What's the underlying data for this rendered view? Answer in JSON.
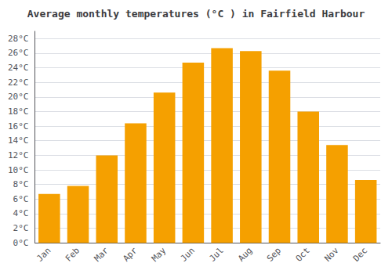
{
  "chart_data": {
    "type": "bar",
    "title": "Average monthly temperatures (°C ) in Fairfield Harbour",
    "categories": [
      "Jan",
      "Feb",
      "Mar",
      "Apr",
      "May",
      "Jun",
      "Jul",
      "Aug",
      "Sep",
      "Oct",
      "Nov",
      "Dec"
    ],
    "values": [
      6.7,
      7.8,
      12.0,
      16.4,
      20.6,
      24.7,
      26.7,
      26.3,
      23.6,
      18.0,
      13.4,
      8.6
    ],
    "color": "#F5A000",
    "ylim": [
      0,
      29
    ],
    "yticks": [
      {
        "value": 0,
        "label": "0°C"
      },
      {
        "value": 2,
        "label": "2°C"
      },
      {
        "value": 4,
        "label": "4°C"
      },
      {
        "value": 6,
        "label": "6°C"
      },
      {
        "value": 8,
        "label": "8°C"
      },
      {
        "value": 10,
        "label": "10°C"
      },
      {
        "value": 12,
        "label": "12°C"
      },
      {
        "value": 14,
        "label": "14°C"
      },
      {
        "value": 16,
        "label": "16°C"
      },
      {
        "value": 18,
        "label": "18°C"
      },
      {
        "value": 20,
        "label": "20°C"
      },
      {
        "value": 22,
        "label": "22°C"
      },
      {
        "value": 24,
        "label": "24°C"
      },
      {
        "value": 26,
        "label": "26°C"
      },
      {
        "value": 28,
        "label": "28°C"
      }
    ],
    "grid": true
  }
}
